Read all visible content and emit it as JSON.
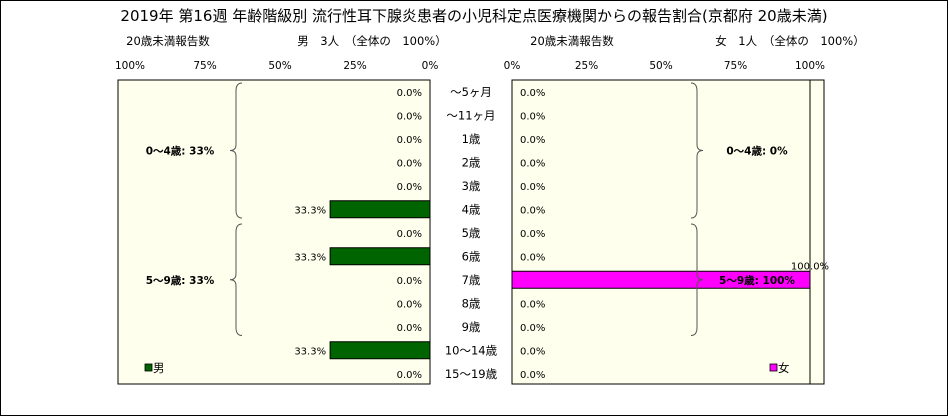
{
  "title": "2019年 第16週 年齢階級別 流行性耳下腺炎患者の小児科定点医療機関からの報告割合(京都府 20歳未満)",
  "left_header": {
    "label": "20歳未満報告数",
    "summary": "男　3人　（全体の　100%）"
  },
  "right_header": {
    "label": "20歳未満報告数",
    "summary": "女　1人　（全体の　100%）"
  },
  "colors": {
    "male": "#006400",
    "female": "#ff00ff",
    "panel_bg": "#ffffee",
    "frame": "#000000"
  },
  "chart_data": {
    "type": "bar",
    "orientation": "horizontal-population-pyramid",
    "categories": [
      "～5ヶ月",
      "～11ヶ月",
      "1歳",
      "2歳",
      "3歳",
      "4歳",
      "5歳",
      "6歳",
      "7歳",
      "8歳",
      "9歳",
      "10～14歳",
      "15～19歳"
    ],
    "series": [
      {
        "name": "男",
        "values": [
          0,
          0,
          0,
          0,
          0,
          33.3,
          0,
          33.3,
          0,
          0,
          0,
          33.3,
          0
        ],
        "labels": [
          "0.0%",
          "0.0%",
          "0.0%",
          "0.0%",
          "0.0%",
          "33.3%",
          "0.0%",
          "33.3%",
          "0.0%",
          "0.0%",
          "0.0%",
          "33.3%",
          "0.0%"
        ]
      },
      {
        "name": "女",
        "values": [
          0,
          0,
          0,
          0,
          0,
          0,
          0,
          0,
          100,
          0,
          0,
          0,
          0
        ],
        "labels": [
          "0.0%",
          "0.0%",
          "0.0%",
          "0.0%",
          "0.0%",
          "0.0%",
          "0.0%",
          "0.0%",
          "100.0%",
          "0.0%",
          "0.0%",
          "0.0%",
          "0.0%"
        ]
      }
    ],
    "xlim": [
      0,
      100
    ],
    "left_ticks": [
      "100%",
      "75%",
      "50%",
      "25%",
      "0%"
    ],
    "right_ticks": [
      "0%",
      "25%",
      "50%",
      "75%",
      "100%"
    ],
    "groups": {
      "male": [
        {
          "label": "0～4歳: 33%",
          "from": 0,
          "to": 5
        },
        {
          "label": "5～9歳: 33%",
          "from": 6,
          "to": 10
        }
      ],
      "female": [
        {
          "label": "0～4歳: 0%",
          "from": 0,
          "to": 5
        },
        {
          "label": "5～9歳: 100%",
          "from": 6,
          "to": 10
        }
      ]
    },
    "legend": {
      "male": "男",
      "female": "女"
    }
  }
}
